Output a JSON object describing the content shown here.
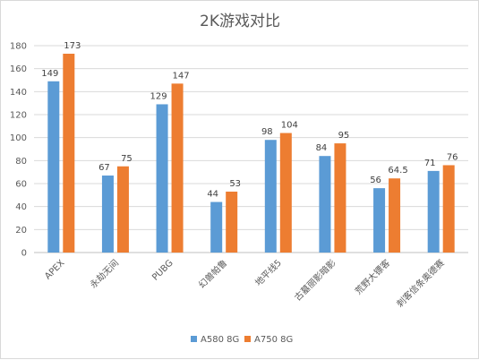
{
  "chart_data": {
    "type": "bar",
    "title": "2K游戏对比",
    "xlabel": "",
    "ylabel": "",
    "ylim": [
      0,
      180
    ],
    "yticks": [
      0,
      20,
      40,
      60,
      80,
      100,
      120,
      140,
      160,
      180
    ],
    "grid": true,
    "legend_position": "bottom",
    "categories": [
      "APEX",
      "永劫无间",
      "PUBG",
      "幻兽帕鲁",
      "地平线5",
      "古墓丽影暗影",
      "荒野大镖客",
      "刺客信条奥德赛"
    ],
    "series": [
      {
        "name": "A580 8G",
        "color": "#5b9bd5",
        "values": [
          149,
          67,
          129,
          44,
          98,
          84,
          56,
          71
        ],
        "labels": [
          "149",
          "67",
          "129",
          "44",
          "98",
          "84",
          "56",
          "71"
        ]
      },
      {
        "name": "A750 8G",
        "color": "#ed7d31",
        "values": [
          173,
          75,
          147,
          53,
          104,
          95,
          64.5,
          76
        ],
        "labels": [
          "173",
          "75",
          "147",
          "53",
          "104",
          "95",
          "64.5",
          "76"
        ]
      }
    ]
  }
}
